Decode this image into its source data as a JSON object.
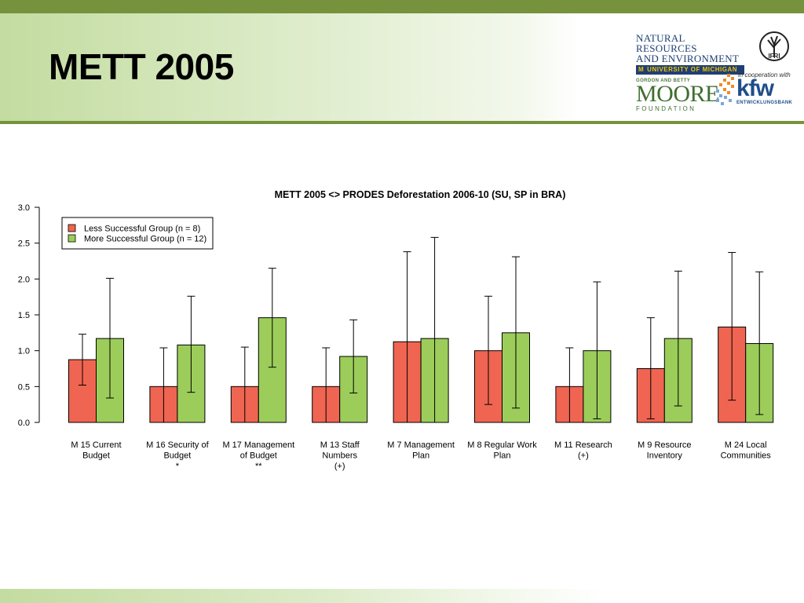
{
  "slide": {
    "title": "METT 2005"
  },
  "logos": {
    "nre_line1": "NATURAL RESOURCES",
    "nre_line2": "AND ENVIRONMENT",
    "nre_university": "UNIVERSITY OF MICHIGAN",
    "ifri": "IFRI",
    "cooperation": "in cooperation with",
    "moore_small": "GORDON AND BETTY",
    "moore_big": "MOORE",
    "moore_foundation": "FOUNDATION",
    "kfw": "kfw",
    "kfw_sub": "ENTWICKLUNGSBANK"
  },
  "colors": {
    "header_green": "#76923c",
    "less_successful": "#ef6551",
    "more_successful": "#9ccd5a"
  },
  "chart_data": {
    "type": "bar",
    "title": "METT 2005 <> PRODES Deforestation 2006-10 (SU, SP in BRA)",
    "xlabel": "",
    "ylabel": "",
    "ylim": [
      0,
      3.0
    ],
    "yticks": [
      "0.0",
      "0.5",
      "1.0",
      "1.5",
      "2.0",
      "2.5",
      "3.0"
    ],
    "grid": false,
    "legend_position": "top-left",
    "categories": [
      [
        "M 15 Current",
        "Budget"
      ],
      [
        "M 16 Security of",
        "Budget",
        "*"
      ],
      [
        "M 17 Management",
        "of Budget",
        "**"
      ],
      [
        "M 13 Staff",
        "Numbers",
        "(+)"
      ],
      [
        "M 7 Management",
        "Plan"
      ],
      [
        "M 8 Regular Work",
        "Plan"
      ],
      [
        "M 11 Research",
        "(+)"
      ],
      [
        "M 9 Resource",
        "Inventory"
      ],
      [
        "M 24 Local",
        "Communities"
      ]
    ],
    "series": [
      {
        "name": "Less Successful Group (n = 8)",
        "color": "#ef6551",
        "values": [
          0.875,
          0.5,
          0.5,
          0.5,
          1.125,
          1.0,
          0.5,
          0.75,
          1.33
        ],
        "err_low": [
          0.52,
          0.0,
          0.0,
          0.0,
          0.0,
          0.25,
          0.0,
          0.05,
          0.31
        ],
        "err_high": [
          1.23,
          1.04,
          1.05,
          1.04,
          2.38,
          1.76,
          1.04,
          1.46,
          2.37
        ]
      },
      {
        "name": "More Successful Group (n = 12)",
        "color": "#9ccd5a",
        "values": [
          1.17,
          1.08,
          1.46,
          0.92,
          1.17,
          1.25,
          1.0,
          1.17,
          1.1
        ],
        "err_low": [
          0.34,
          0.42,
          0.77,
          0.41,
          0.0,
          0.2,
          0.05,
          0.23,
          0.11
        ],
        "err_high": [
          2.01,
          1.76,
          2.15,
          1.43,
          2.58,
          2.31,
          1.96,
          2.11,
          2.1
        ]
      }
    ]
  }
}
